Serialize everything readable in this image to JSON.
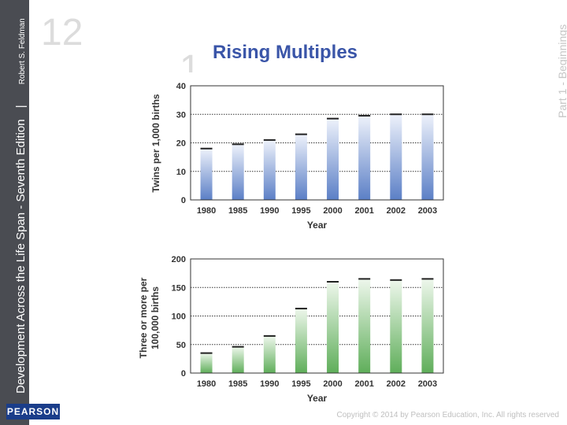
{
  "slide": {
    "title": "Rising Multiples",
    "spine_title": "Development Across the Life Span - Seventh Edition",
    "spine_author": "Robert S. Feldman",
    "spine_separator": "|",
    "part_label": "Part 1 - Beginnings",
    "footer": "Copyright © 2014 by Pearson Education, Inc. All rights reserved",
    "logo_text": "PEARSON",
    "deco_numbers": [
      "12",
      "1"
    ]
  },
  "colors": {
    "bar_blue": "#5b7fc6",
    "bar_green": "#5fae5a",
    "title": "#3a55a8"
  },
  "chart_data": [
    {
      "type": "bar",
      "categories": [
        "1980",
        "1985",
        "1990",
        "1995",
        "2000",
        "2001",
        "2002",
        "2003"
      ],
      "values": [
        18,
        19.5,
        21,
        23,
        28.5,
        29.5,
        30,
        30
      ],
      "xlabel": "Year",
      "ylabel": "Twins per 1,000 births",
      "ylim": [
        0,
        40
      ],
      "yticks": [
        "0",
        "10",
        "20",
        "30",
        "40"
      ],
      "grid": true
    },
    {
      "type": "bar",
      "categories": [
        "1980",
        "1985",
        "1990",
        "1995",
        "2000",
        "2001",
        "2002",
        "2003"
      ],
      "values": [
        35,
        46,
        65,
        113,
        160,
        165,
        163,
        165
      ],
      "xlabel": "Year",
      "ylabel_line1": "Three or more per",
      "ylabel_line2": "100,000 births",
      "ylim": [
        0,
        200
      ],
      "yticks": [
        "0",
        "50",
        "100",
        "150",
        "200"
      ],
      "grid": true
    }
  ]
}
